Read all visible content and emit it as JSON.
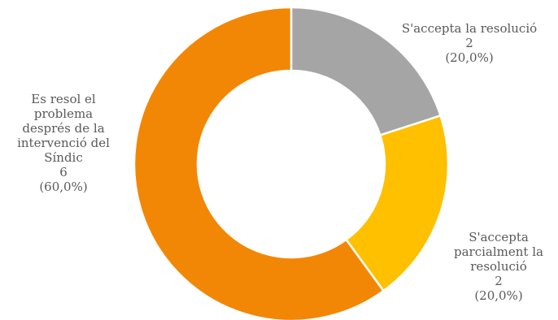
{
  "chart_data": {
    "type": "donut",
    "title": "",
    "legend": "none",
    "series": [
      {
        "values": [
          2,
          2,
          6
        ],
        "categories": [
          "S'accepta la resolució",
          "S'accepta parcialment la resolució",
          "Es resol el problema després de la intervenció del Síndic"
        ],
        "percent_labels": [
          "(20,0%)",
          "(20,0%)",
          "(60,0%)"
        ],
        "colors": [
          "#A5A5A5",
          "#FFC000",
          "#F28705"
        ]
      }
    ],
    "labels": {
      "slice1": {
        "lines": [
          "S'accepta la resolució"
        ],
        "value": "2",
        "percent": "(20,0%)"
      },
      "slice2": {
        "lines": [
          "S'accepta",
          "parcialment la",
          "resolució"
        ],
        "value": "2",
        "percent": "(20,0%)"
      },
      "slice3": {
        "lines": [
          "Es resol el",
          "problema",
          "després de la",
          "intervenció  del",
          "Síndic"
        ],
        "value": "6",
        "percent": "(60,0%)"
      }
    }
  }
}
